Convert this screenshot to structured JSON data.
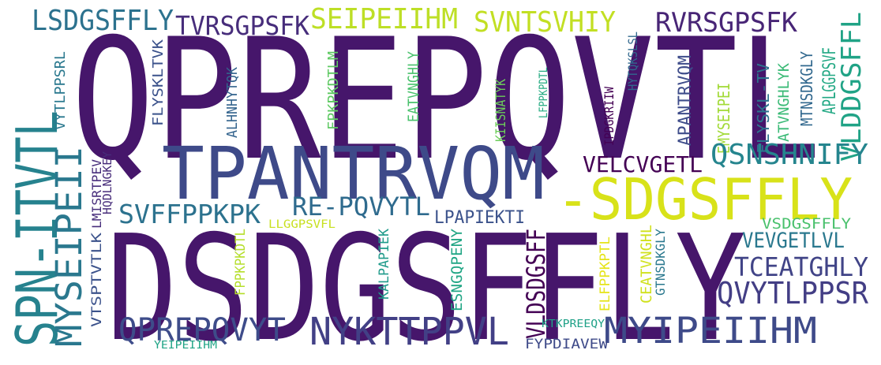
{
  "chart_data": {
    "type": "wordcloud",
    "words": [
      {
        "text": "QPREPQVTL",
        "color": "#46166b"
      },
      {
        "text": "DSDGSFFLY",
        "color": "#46166b"
      },
      {
        "text": "TPANTRVQM",
        "color": "#3e4a89"
      },
      {
        "text": "-SDGSFFLY",
        "color": "#d8e219"
      },
      {
        "text": "SPN-ITVTL",
        "color": "#26828e"
      },
      {
        "text": "MYSEIPEII",
        "color": "#2a788e"
      },
      {
        "text": "LSDGSFFLY",
        "color": "#2c728e"
      },
      {
        "text": "TVRSGPSFK",
        "color": "#472d7b"
      },
      {
        "text": "SEIPEIIHM",
        "color": "#bddf26"
      },
      {
        "text": "SVNTSVHIY",
        "color": "#c2df23"
      },
      {
        "text": "RVRSGPSFK",
        "color": "#482576"
      },
      {
        "text": "VLDDGSFFL",
        "color": "#20a386"
      },
      {
        "text": "APLGGPSVF",
        "color": "#22a884"
      },
      {
        "text": "MTNSDKGLY",
        "color": "#31688e"
      },
      {
        "text": "ATVNGHLYK",
        "color": "#3aba76"
      },
      {
        "text": "FLYSKL-TV",
        "color": "#2c728e"
      },
      {
        "text": "EMYSEIPEI",
        "color": "#a2da37"
      },
      {
        "text": "APANTRVQM",
        "color": "#3e4c8a"
      },
      {
        "text": "IPDGKRIIW",
        "color": "#440154"
      },
      {
        "text": "HYTQKSLSL",
        "color": "#31688e"
      },
      {
        "text": "QSNSHNIFY",
        "color": "#25858e"
      },
      {
        "text": "VELCVGETL",
        "color": "#440154"
      },
      {
        "text": "VYTLPPSRL",
        "color": "#2a788e"
      },
      {
        "text": "FLYSKLTVK",
        "color": "#3b528b"
      },
      {
        "text": "ALHNHYTQK",
        "color": "#33638d"
      },
      {
        "text": "FPKPKDTLM",
        "color": "#5ec962"
      },
      {
        "text": "EATVNGHLY",
        "color": "#4ac16d"
      },
      {
        "text": "KIISNATYK",
        "color": "#6ccd5a"
      },
      {
        "text": "LFPPKPDTL",
        "color": "#25ab82"
      },
      {
        "text": "HQDLNGKEY",
        "color": "#472c7a"
      },
      {
        "text": "VTSPTVTLK",
        "color": "#3b528b"
      },
      {
        "text": "LMISRTPEV",
        "color": "#472d7b"
      },
      {
        "text": "SVFFPPKPK",
        "color": "#2c728e"
      },
      {
        "text": "RE-PQVYTL",
        "color": "#2f6b8e"
      },
      {
        "text": "LPAPIEKTI",
        "color": "#3b528b"
      },
      {
        "text": "LLGGPSVFL",
        "color": "#c8e020"
      },
      {
        "text": "FPPKPKDTL",
        "color": "#b5de2b"
      },
      {
        "text": "KALPAPIEK",
        "color": "#1f9a8a"
      },
      {
        "text": "ESNGQPENY",
        "color": "#21a685"
      },
      {
        "text": "VLDSDGSFF",
        "color": "#440154"
      },
      {
        "text": "ELFPPKPTL",
        "color": "#e5e419"
      },
      {
        "text": "CEATVNGHL",
        "color": "#d0e11c"
      },
      {
        "text": "GTNSDKGLY",
        "color": "#2a788e"
      },
      {
        "text": "VSDGSFFLY",
        "color": "#4ac16d"
      },
      {
        "text": "VEVGETLVL",
        "color": "#2a788e"
      },
      {
        "text": "TCEATGHLY",
        "color": "#414487"
      },
      {
        "text": "QVYTLPPSR",
        "color": "#433e85"
      },
      {
        "text": "MYIPEIIHM",
        "color": "#3e4a89"
      },
      {
        "text": "NYKTTPPVL",
        "color": "#424086"
      },
      {
        "text": "QPREPQVYT",
        "color": "#3e4c8a"
      },
      {
        "text": "YEIPEIIHM",
        "color": "#20a486"
      },
      {
        "text": "KTKPREEQY",
        "color": "#1fa187"
      },
      {
        "text": "FYPDIAVEW",
        "color": "#3e4a89"
      }
    ]
  }
}
